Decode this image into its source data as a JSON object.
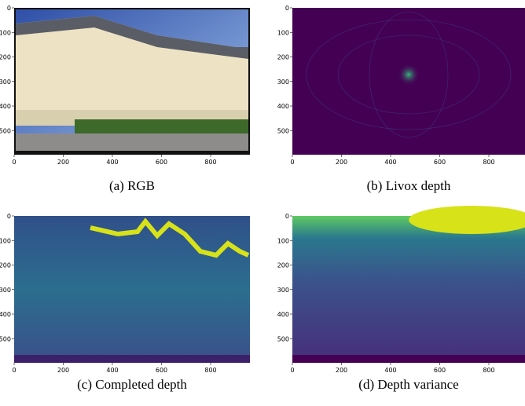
{
  "panels": [
    {
      "caption": "(a) RGB",
      "xticks": [
        0,
        200,
        400,
        600,
        800
      ],
      "yticks": [
        0,
        100,
        200,
        300,
        400,
        500
      ]
    },
    {
      "caption": "(b) Livox depth",
      "xticks": [
        0,
        200,
        400,
        600,
        800
      ],
      "yticks": [
        0,
        100,
        200,
        300,
        400,
        500
      ]
    },
    {
      "caption": "(c) Completed depth",
      "xticks": [
        0,
        200,
        400,
        600,
        800
      ],
      "yticks": [
        0,
        100,
        200,
        300,
        400,
        500
      ]
    },
    {
      "caption": "(d) Depth variance",
      "xticks": [
        0,
        200,
        400,
        600,
        800
      ],
      "yticks": [
        0,
        100,
        200,
        300,
        400,
        500
      ]
    }
  ]
}
